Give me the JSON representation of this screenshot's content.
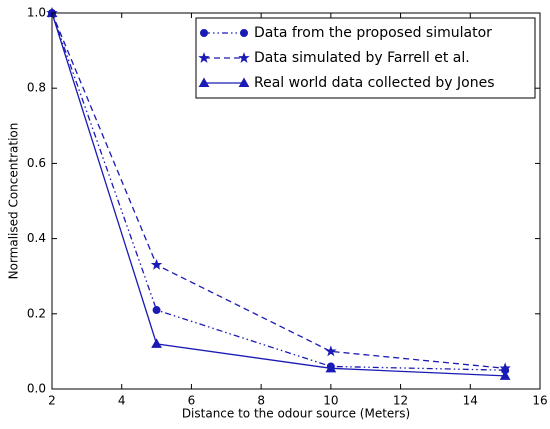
{
  "chart_data": {
    "type": "line",
    "xlabel": "Distance to the odour source (Meters)",
    "ylabel": "Normalised Concentration",
    "x": [
      2,
      5,
      10,
      15
    ],
    "series": [
      {
        "name": "Data from the proposed simulator",
        "color": "#1a1ab4",
        "marker": "circle",
        "linestyle": "dashdot",
        "values": [
          1.0,
          0.21,
          0.06,
          0.05
        ]
      },
      {
        "name": "Data simulated by Farrell et al.",
        "color": "#1a1ab4",
        "marker": "star",
        "linestyle": "dashed",
        "values": [
          1.0,
          0.33,
          0.1,
          0.055
        ]
      },
      {
        "name": "Real world data collected by Jones",
        "color": "#1a1ab4",
        "marker": "triangle",
        "linestyle": "solid",
        "values": [
          1.0,
          0.12,
          0.055,
          0.035
        ]
      }
    ],
    "xlim": [
      2,
      16
    ],
    "xticks": [
      2,
      4,
      6,
      8,
      10,
      12,
      14,
      16
    ],
    "ylim": [
      0,
      1
    ],
    "yticks": [
      {
        "value": 0,
        "label": "0.0"
      },
      0.2,
      0.4,
      0.6,
      0.8,
      {
        "value": 1,
        "label": "1.0"
      }
    ],
    "legend": "upper right"
  }
}
